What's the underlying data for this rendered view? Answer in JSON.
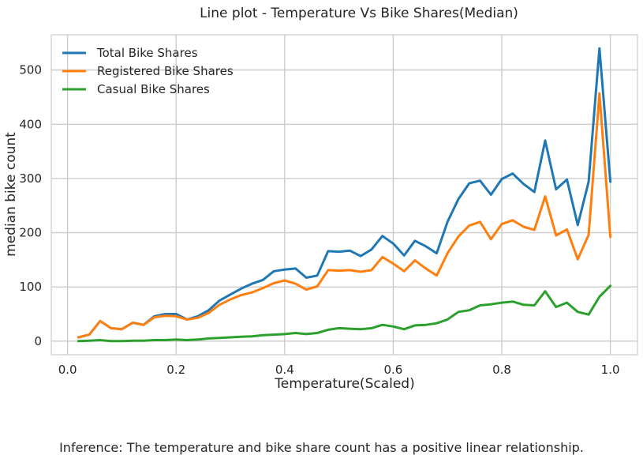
{
  "chart_data": {
    "type": "line",
    "title": "Line plot - Temperature Vs Bike Shares(Median)",
    "xlabel": "Temperature(Scaled)",
    "ylabel": "median bike count",
    "xlim": [
      -0.03,
      1.05
    ],
    "ylim": [
      -25,
      565
    ],
    "x_ticks": [
      0.0,
      0.2,
      0.4,
      0.6,
      0.8,
      1.0
    ],
    "x_tick_labels": [
      "0.0",
      "0.2",
      "0.4",
      "0.6",
      "0.8",
      "1.0"
    ],
    "y_ticks": [
      0,
      100,
      200,
      300,
      400,
      500
    ],
    "y_tick_labels": [
      "0",
      "100",
      "200",
      "300",
      "400",
      "500"
    ],
    "grid": true,
    "legend_position": "top-left",
    "x": [
      0.02,
      0.04,
      0.06,
      0.08,
      0.1,
      0.12,
      0.14,
      0.16,
      0.18,
      0.2,
      0.22,
      0.24,
      0.26,
      0.28,
      0.3,
      0.32,
      0.34,
      0.36,
      0.38,
      0.4,
      0.42,
      0.44,
      0.46,
      0.48,
      0.5,
      0.52,
      0.54,
      0.56,
      0.58,
      0.6,
      0.62,
      0.64,
      0.66,
      0.68,
      0.7,
      0.72,
      0.74,
      0.76,
      0.78,
      0.8,
      0.82,
      0.84,
      0.86,
      0.88,
      0.9,
      0.92,
      0.94,
      0.96,
      0.98,
      1.0
    ],
    "series": [
      {
        "name": "Total Bike Shares",
        "color": "#1f77b4",
        "values": [
          7,
          12,
          37,
          24,
          22,
          34,
          30,
          46,
          50,
          50,
          40,
          46,
          57,
          75,
          86,
          97,
          106,
          113,
          129,
          132,
          134,
          117,
          121,
          166,
          165,
          167,
          157,
          169,
          194,
          180,
          158,
          185,
          175,
          162,
          220,
          262,
          291,
          296,
          270,
          299,
          309,
          290,
          275,
          370,
          280,
          298,
          214,
          294,
          540,
          294
        ]
      },
      {
        "name": "Registered Bike Shares",
        "color": "#ff7f0e",
        "values": [
          7,
          12,
          37,
          24,
          22,
          34,
          30,
          44,
          47,
          46,
          40,
          43,
          52,
          67,
          77,
          85,
          90,
          98,
          107,
          112,
          106,
          95,
          101,
          131,
          130,
          131,
          128,
          131,
          155,
          143,
          129,
          149,
          134,
          121,
          162,
          193,
          213,
          220,
          188,
          216,
          223,
          211,
          205,
          267,
          195,
          206,
          151,
          196,
          457,
          192
        ]
      },
      {
        "name": "Casual Bike Shares",
        "color": "#2ca02c",
        "values": [
          0,
          1,
          2,
          0,
          0,
          1,
          1,
          2,
          2,
          3,
          2,
          3,
          5,
          6,
          7,
          8,
          9,
          11,
          12,
          13,
          15,
          13,
          15,
          21,
          24,
          23,
          22,
          24,
          30,
          27,
          22,
          29,
          30,
          33,
          40,
          54,
          57,
          66,
          68,
          71,
          73,
          67,
          66,
          92,
          63,
          71,
          54,
          49,
          82,
          102
        ]
      }
    ]
  },
  "caption": "Inference: The temperature and bike share count has a positive linear relationship."
}
